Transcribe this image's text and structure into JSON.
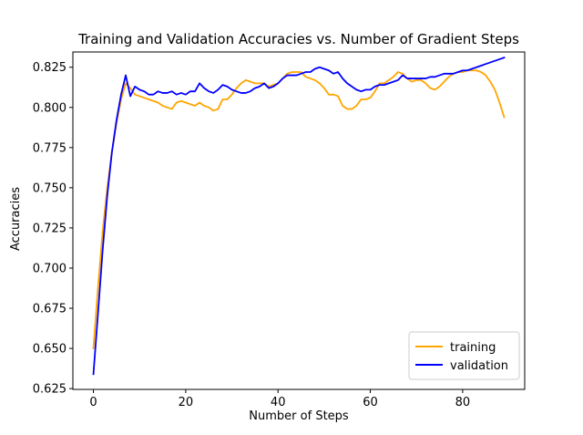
{
  "chart_data": {
    "type": "line",
    "title": "Training and Validation Accuracies vs. Number of Gradient Steps",
    "xlabel": "Number of Steps",
    "ylabel": "Accuracies",
    "xlim": [
      -4.45,
      93.45
    ],
    "ylim": [
      0.6245,
      0.8345
    ],
    "xticks": [
      0,
      20,
      40,
      60,
      80
    ],
    "xtick_labels": [
      "0",
      "20",
      "40",
      "60",
      "80"
    ],
    "yticks": [
      0.625,
      0.65,
      0.675,
      0.7,
      0.725,
      0.75,
      0.775,
      0.8,
      0.825
    ],
    "ytick_labels": [
      "0.625",
      "0.650",
      "0.675",
      "0.700",
      "0.725",
      "0.750",
      "0.775",
      "0.800",
      "0.825"
    ],
    "grid": false,
    "legend_position": "lower right",
    "series": [
      {
        "name": "training",
        "color": "#ffa500",
        "x": [
          0,
          1,
          2,
          3,
          4,
          5,
          6,
          7,
          8,
          9,
          10,
          11,
          12,
          13,
          14,
          15,
          16,
          17,
          18,
          19,
          20,
          21,
          22,
          23,
          24,
          25,
          26,
          27,
          28,
          29,
          30,
          31,
          32,
          33,
          34,
          35,
          36,
          37,
          38,
          39,
          40,
          41,
          42,
          43,
          44,
          45,
          46,
          47,
          48,
          49,
          50,
          51,
          52,
          53,
          54,
          55,
          56,
          57,
          58,
          59,
          60,
          61,
          62,
          63,
          64,
          65,
          66,
          67,
          68,
          69,
          70,
          71,
          72,
          73,
          74,
          75,
          76,
          77,
          78,
          79,
          80,
          81,
          82,
          83,
          84,
          85,
          86,
          87,
          88,
          89
        ],
        "values": [
          0.65,
          0.688,
          0.723,
          0.75,
          0.772,
          0.79,
          0.805,
          0.815,
          0.812,
          0.808,
          0.807,
          0.806,
          0.805,
          0.804,
          0.803,
          0.801,
          0.8,
          0.799,
          0.803,
          0.804,
          0.803,
          0.802,
          0.801,
          0.803,
          0.801,
          0.8,
          0.798,
          0.799,
          0.805,
          0.805,
          0.808,
          0.812,
          0.815,
          0.817,
          0.816,
          0.815,
          0.815,
          0.815,
          0.813,
          0.814,
          0.815,
          0.818,
          0.821,
          0.822,
          0.822,
          0.822,
          0.819,
          0.818,
          0.817,
          0.815,
          0.812,
          0.808,
          0.808,
          0.807,
          0.801,
          0.799,
          0.799,
          0.801,
          0.805,
          0.805,
          0.806,
          0.81,
          0.815,
          0.815,
          0.817,
          0.819,
          0.822,
          0.821,
          0.818,
          0.816,
          0.817,
          0.817,
          0.815,
          0.812,
          0.811,
          0.813,
          0.816,
          0.819,
          0.821,
          0.822,
          0.822,
          0.823,
          0.823,
          0.823,
          0.822,
          0.82,
          0.816,
          0.811,
          0.803,
          0.794
        ]
      },
      {
        "name": "validation",
        "color": "#0000ff",
        "x": [
          0,
          1,
          2,
          3,
          4,
          5,
          6,
          7,
          8,
          9,
          10,
          11,
          12,
          13,
          14,
          15,
          16,
          17,
          18,
          19,
          20,
          21,
          22,
          23,
          24,
          25,
          26,
          27,
          28,
          29,
          30,
          31,
          32,
          33,
          34,
          35,
          36,
          37,
          38,
          39,
          40,
          41,
          42,
          43,
          44,
          45,
          46,
          47,
          48,
          49,
          50,
          51,
          52,
          53,
          54,
          55,
          56,
          57,
          58,
          59,
          60,
          61,
          62,
          63,
          64,
          65,
          66,
          67,
          68,
          69,
          70,
          71,
          72,
          73,
          74,
          75,
          76,
          77,
          78,
          79,
          80,
          81,
          82,
          83,
          84,
          85,
          86,
          87,
          88,
          89
        ],
        "values": [
          0.634,
          0.672,
          0.711,
          0.745,
          0.772,
          0.792,
          0.808,
          0.82,
          0.807,
          0.813,
          0.811,
          0.81,
          0.808,
          0.808,
          0.81,
          0.809,
          0.809,
          0.81,
          0.808,
          0.809,
          0.808,
          0.81,
          0.81,
          0.815,
          0.812,
          0.81,
          0.809,
          0.811,
          0.814,
          0.813,
          0.811,
          0.81,
          0.809,
          0.809,
          0.81,
          0.812,
          0.813,
          0.815,
          0.812,
          0.813,
          0.815,
          0.818,
          0.82,
          0.82,
          0.82,
          0.821,
          0.822,
          0.822,
          0.824,
          0.825,
          0.824,
          0.823,
          0.821,
          0.822,
          0.818,
          0.815,
          0.813,
          0.811,
          0.81,
          0.811,
          0.811,
          0.813,
          0.814,
          0.814,
          0.815,
          0.816,
          0.817,
          0.82,
          0.818,
          0.818,
          0.818,
          0.818,
          0.818,
          0.819,
          0.819,
          0.82,
          0.821,
          0.821,
          0.821,
          0.822,
          0.823,
          0.823,
          0.824,
          0.825,
          0.826,
          0.827,
          0.828,
          0.829,
          0.83,
          0.831
        ]
      }
    ]
  }
}
